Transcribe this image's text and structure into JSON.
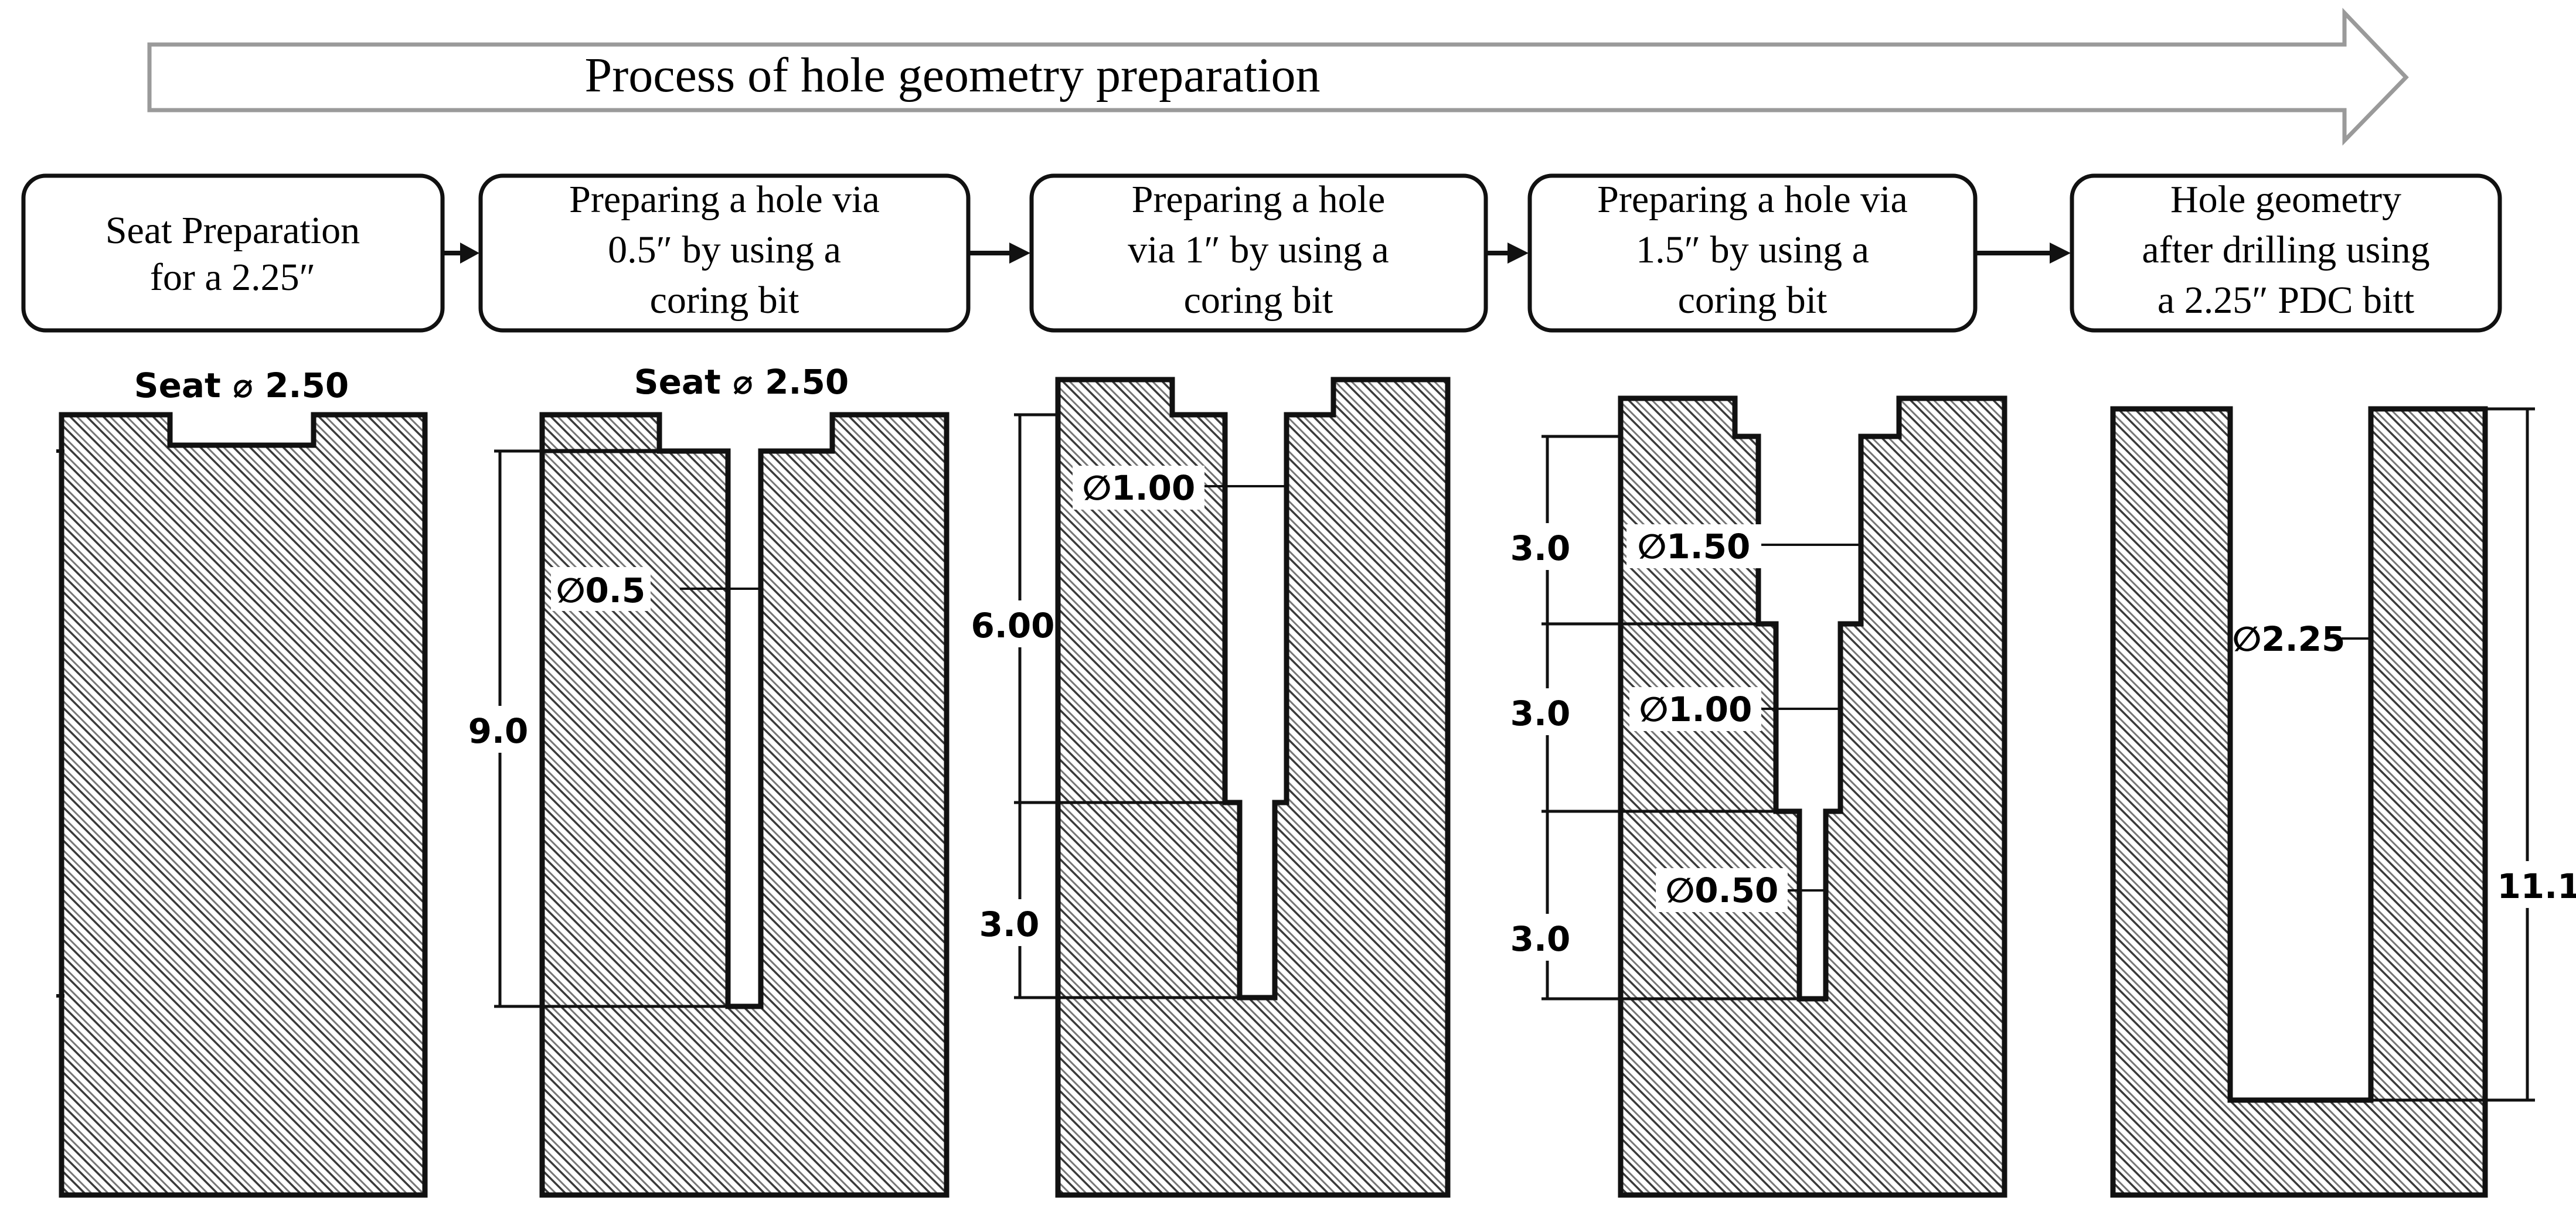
{
  "banner": {
    "label": "Process of hole geometry preparation"
  },
  "steps": [
    {
      "lines": [
        "Seat Preparation",
        "for a 2.25″"
      ]
    },
    {
      "lines": [
        "Preparing a hole via",
        "0.5″ by using a",
        "coring  bit"
      ]
    },
    {
      "lines": [
        "Preparing a hole",
        "via 1″ by using a",
        "coring bit"
      ]
    },
    {
      "lines": [
        "Preparing a hole via",
        "1.5″ by using a",
        "coring bit"
      ]
    },
    {
      "lines": [
        "Hole geometry",
        "after drilling using",
        "a 2.25″ PDC bitt"
      ]
    }
  ],
  "drawings": {
    "seat": {
      "seat_label": "Seat ⌀ 2.50"
    },
    "half_inch": {
      "seat_label": "Seat ⌀ 2.50",
      "diameter": "∅0.5",
      "depth": "9.0"
    },
    "one_inch": {
      "diameter": "∅1.00",
      "depth_upper": "6.00",
      "depth_lower": "3.0"
    },
    "one_half_inch": {
      "diameter_top": "∅1.50",
      "diameter_mid": "∅1.00",
      "diameter_bottom": "∅0.50",
      "depth_top": "3.0",
      "depth_mid": "3.0",
      "depth_bottom": "3.0"
    },
    "final": {
      "diameter": "∅2.25",
      "depth": "11.1"
    }
  }
}
